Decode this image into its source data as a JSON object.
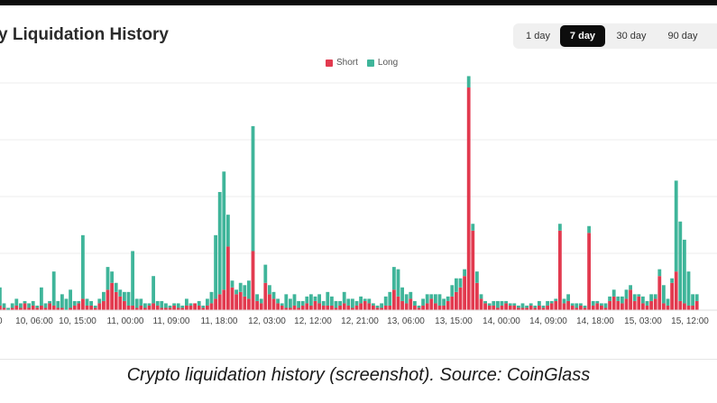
{
  "caption": "Crypto liquidation history (screenshot). Source: CoinGlass",
  "colors": {
    "short": "#e23a4f",
    "long": "#3fb59a",
    "active_bg": "#0d0d0d"
  },
  "header": {
    "title": "y Liquidation History",
    "ranges": [
      {
        "label": "1 day",
        "active": false
      },
      {
        "label": "7 day",
        "active": true
      },
      {
        "label": "30 day",
        "active": false
      },
      {
        "label": "90 day",
        "active": false
      }
    ]
  },
  "chart_data": {
    "type": "bar",
    "stacked": true,
    "title": "Liquidation History",
    "xlabel": "",
    "ylabel": "",
    "ylim": [
      0,
      100
    ],
    "grid": true,
    "legend": "top-center",
    "tick_labels": [
      "0",
      "10, 06:00",
      "10, 15:00",
      "11, 00:00",
      "11, 09:00",
      "11, 18:00",
      "12, 03:00",
      "12, 12:00",
      "12, 21:00",
      "13, 06:00",
      "13, 15:00",
      "14, 00:00",
      "14, 09:00",
      "14, 18:00",
      "15, 03:00",
      "15, 12:00"
    ],
    "series": [
      {
        "name": "Short",
        "color": "#e23a4f",
        "values": [
          2,
          1,
          0,
          1,
          2,
          1,
          3,
          1,
          2,
          1,
          2,
          1,
          3,
          2,
          1,
          1,
          0,
          1,
          2,
          3,
          5,
          2,
          2,
          1,
          3,
          4,
          9,
          12,
          8,
          6,
          4,
          2,
          2,
          1,
          2,
          1,
          2,
          3,
          2,
          1,
          1,
          1,
          2,
          1,
          1,
          2,
          2,
          3,
          2,
          1,
          2,
          3,
          5,
          7,
          9,
          28,
          10,
          7,
          8,
          6,
          5,
          26,
          4,
          3,
          12,
          7,
          5,
          3,
          2,
          1,
          1,
          2,
          1,
          2,
          3,
          2,
          4,
          3,
          2,
          2,
          2,
          1,
          2,
          3,
          2,
          1,
          2,
          3,
          4,
          3,
          2,
          1,
          1,
          2,
          2,
          9,
          6,
          4,
          3,
          5,
          2,
          1,
          2,
          3,
          5,
          3,
          2,
          2,
          4,
          6,
          8,
          10,
          15,
          98,
          35,
          12,
          5,
          3,
          2,
          2,
          1,
          2,
          3,
          2,
          2,
          1,
          1,
          1,
          2,
          1,
          2,
          1,
          2,
          3,
          4,
          35,
          3,
          4,
          2,
          1,
          2,
          1,
          34,
          2,
          3,
          2,
          1,
          4,
          6,
          4,
          3,
          5,
          9,
          4,
          6,
          3,
          2,
          4,
          5,
          15,
          3,
          2,
          12,
          17,
          4,
          3,
          2,
          2,
          4
        ]
      },
      {
        "name": "Long",
        "color": "#3fb59a",
        "values": [
          8,
          2,
          1,
          2,
          3,
          2,
          1,
          2,
          2,
          1,
          8,
          2,
          1,
          15,
          3,
          6,
          5,
          8,
          2,
          1,
          28,
          3,
          2,
          1,
          2,
          4,
          10,
          5,
          4,
          3,
          4,
          6,
          24,
          4,
          3,
          2,
          1,
          12,
          2,
          3,
          2,
          1,
          1,
          2,
          1,
          3,
          1,
          0,
          2,
          1,
          3,
          5,
          28,
          45,
          52,
          14,
          3,
          2,
          4,
          5,
          8,
          55,
          3,
          2,
          8,
          4,
          3,
          2,
          1,
          6,
          4,
          5,
          3,
          2,
          3,
          5,
          2,
          4,
          2,
          6,
          4,
          3,
          2,
          5,
          3,
          4,
          2,
          3,
          1,
          2,
          1,
          1,
          2,
          4,
          6,
          10,
          12,
          6,
          4,
          3,
          2,
          1,
          3,
          4,
          2,
          4,
          5,
          3,
          2,
          5,
          6,
          4,
          3,
          5,
          3,
          5,
          2,
          1,
          1,
          2,
          3,
          2,
          1,
          1,
          1,
          1,
          2,
          1,
          1,
          1,
          2,
          1,
          2,
          1,
          1,
          3,
          2,
          3,
          1,
          2,
          1,
          1,
          3,
          2,
          1,
          1,
          2,
          2,
          3,
          2,
          3,
          4,
          2,
          3,
          1,
          3,
          2,
          3,
          2,
          3,
          8,
          3,
          2,
          40,
          35,
          28,
          15,
          5,
          3
        ]
      }
    ]
  }
}
